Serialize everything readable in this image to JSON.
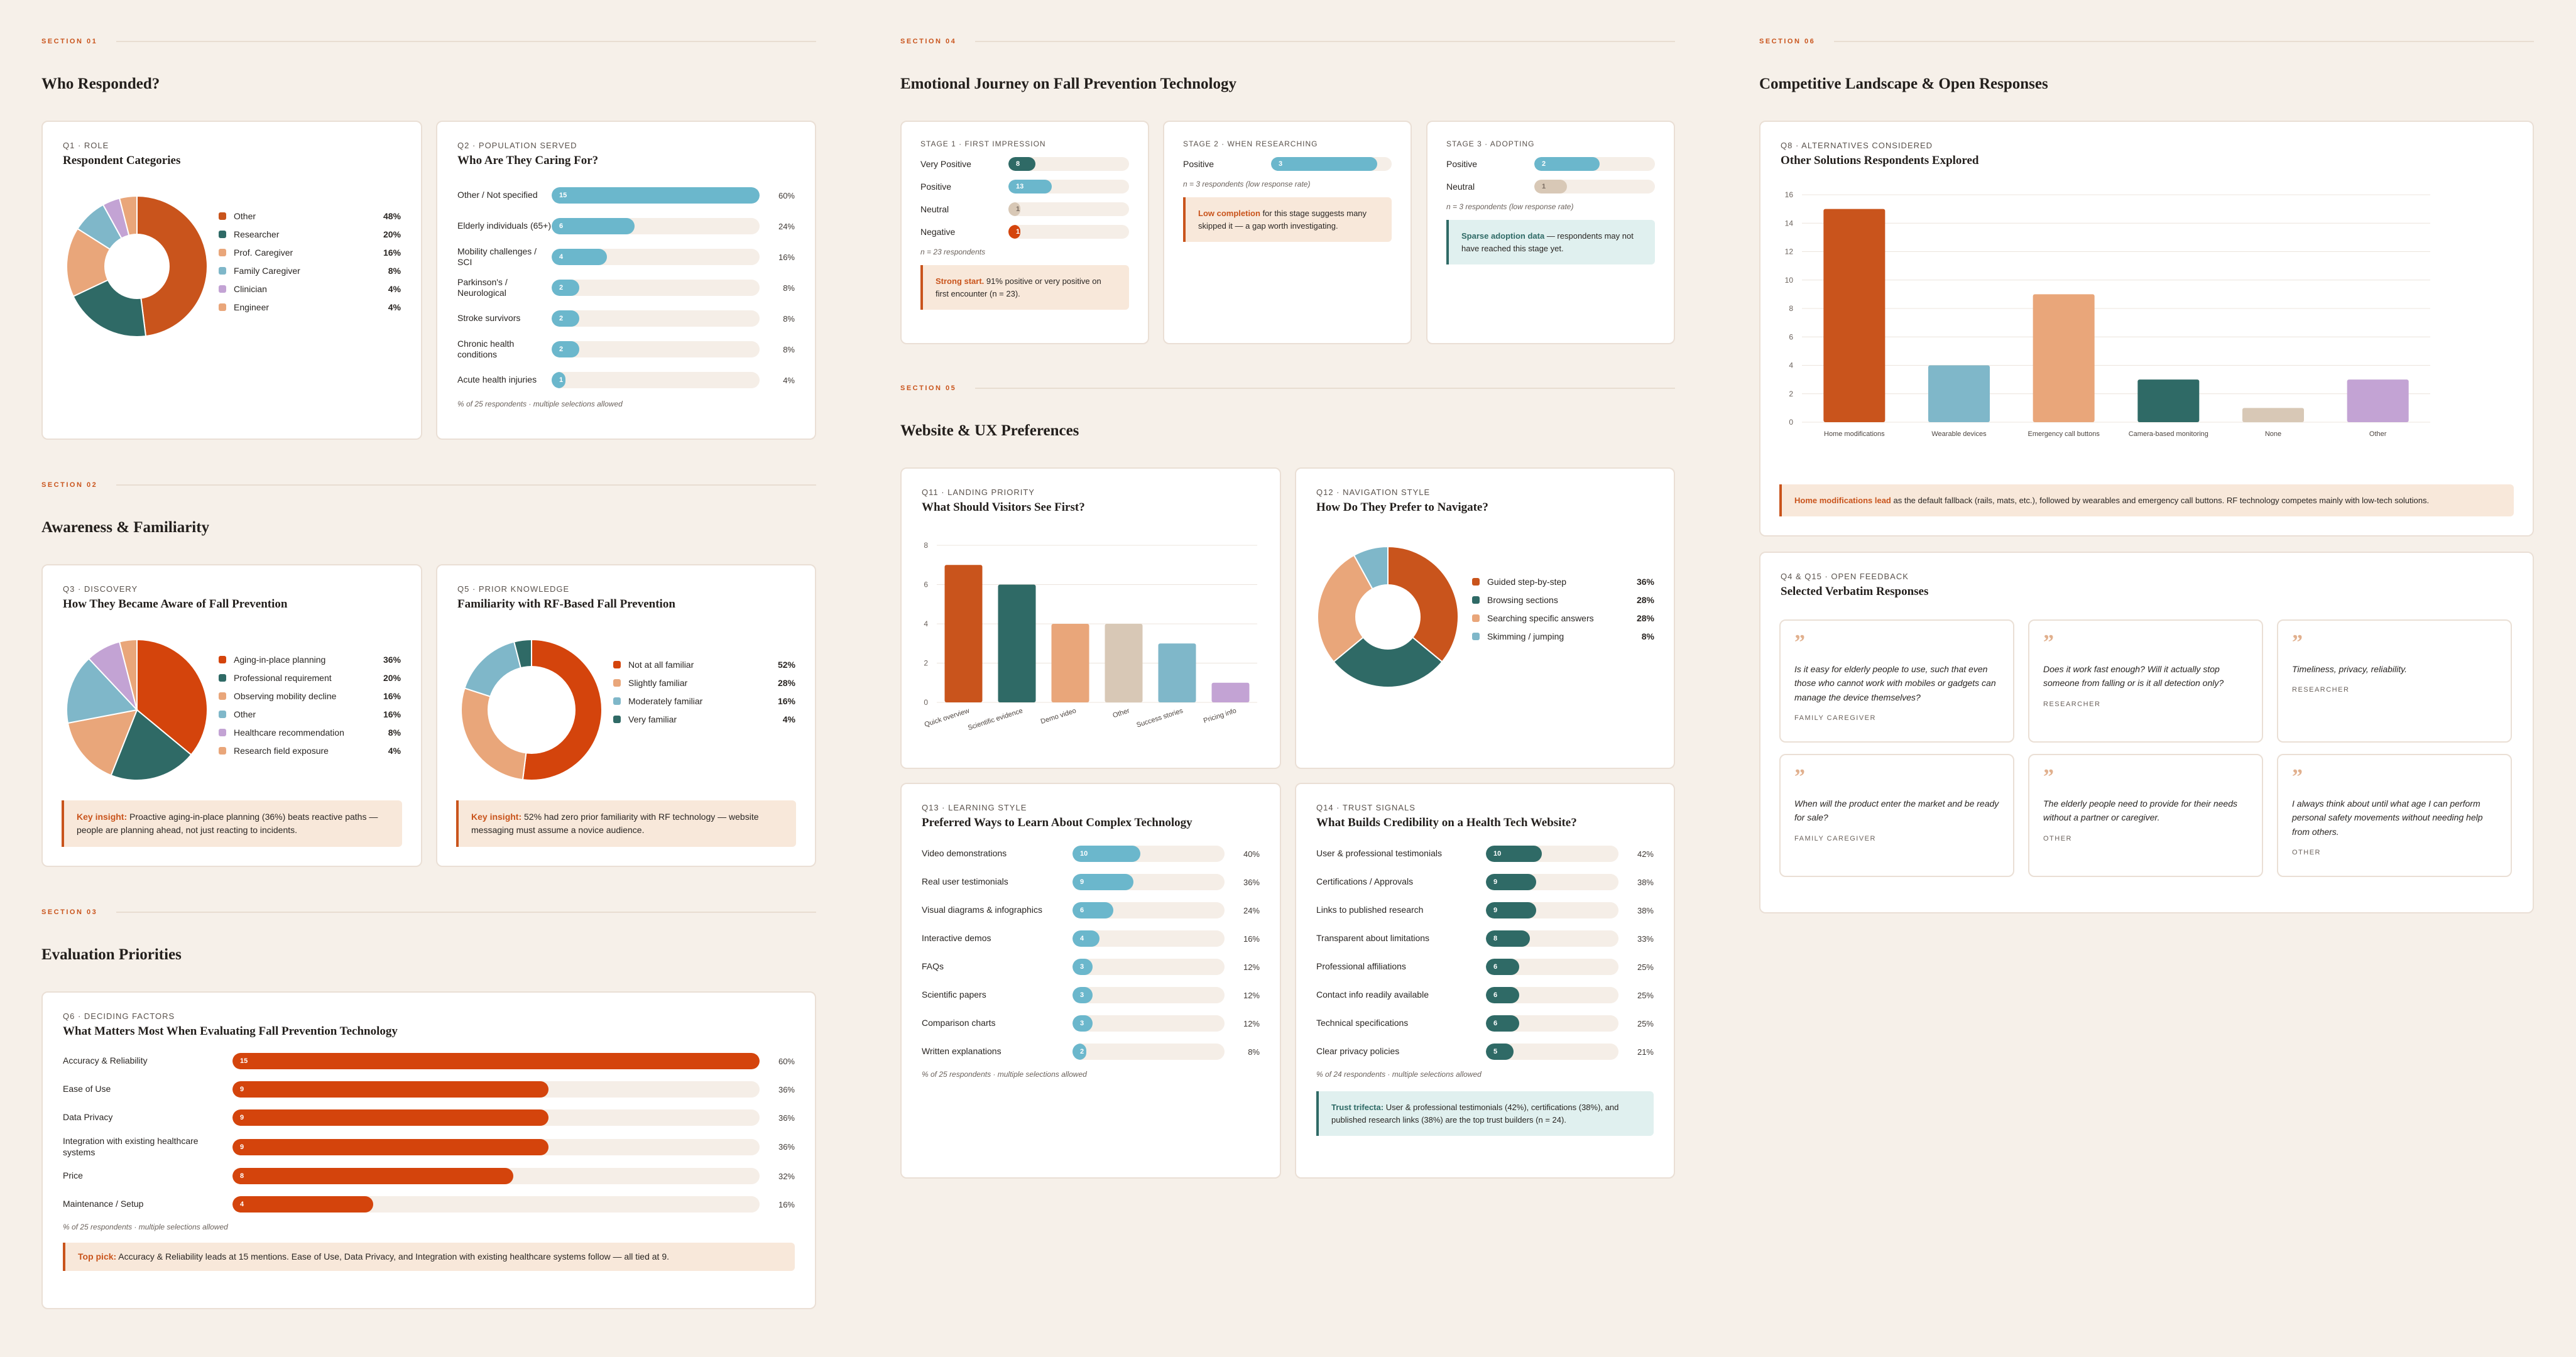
{
  "colors": {
    "orange": "#c9541c",
    "teal": "#2f6a66",
    "peach": "#e9a67a",
    "lightblue": "#7fb7c9",
    "lilac": "#c3a3d4",
    "sand": "#d8c8b6",
    "red": "#d4440c",
    "barblue": "#6bb7cc",
    "barteal": "#2f6a66"
  },
  "s1": {
    "label": "SECTION 01",
    "title": "Who Responded?"
  },
  "s2": {
    "label": "SECTION 02",
    "title": "Awareness & Familiarity"
  },
  "s3": {
    "label": "SECTION 03",
    "title": "Evaluation Priorities"
  },
  "s4": {
    "label": "SECTION 04",
    "title": "Emotional Journey on Fall Prevention Technology"
  },
  "s5": {
    "label": "SECTION 05",
    "title": "Website & UX Preferences"
  },
  "s6": {
    "label": "SECTION 06",
    "title": "Competitive Landscape & Open Responses"
  },
  "q1": {
    "label": "Q1 · ROLE",
    "title": "Respondent Categories",
    "items": [
      {
        "name": "Other",
        "pct": "48%"
      },
      {
        "name": "Researcher",
        "pct": "20%"
      },
      {
        "name": "Prof. Caregiver",
        "pct": "16%"
      },
      {
        "name": "Family Caregiver",
        "pct": "8%"
      },
      {
        "name": "Clinician",
        "pct": "4%"
      },
      {
        "name": "Engineer",
        "pct": "4%"
      }
    ]
  },
  "q2": {
    "label": "Q2 · POPULATION SERVED",
    "title": "Who Are They Caring For?",
    "note": "% of 25 respondents · multiple selections allowed",
    "items": [
      {
        "name": "Other / Not specified",
        "n": "15",
        "pct": "60%"
      },
      {
        "name": "Elderly individuals (65+)",
        "n": "6",
        "pct": "24%"
      },
      {
        "name": "Mobility challenges / SCI",
        "n": "4",
        "pct": "16%"
      },
      {
        "name": "Parkinson's / Neurological",
        "n": "2",
        "pct": "8%"
      },
      {
        "name": "Stroke survivors",
        "n": "2",
        "pct": "8%"
      },
      {
        "name": "Chronic health conditions",
        "n": "2",
        "pct": "8%"
      },
      {
        "name": "Acute health injuries",
        "n": "1",
        "pct": "4%"
      }
    ]
  },
  "q3": {
    "label": "Q3 · DISCOVERY",
    "title": "How They Became Aware of Fall Prevention",
    "items": [
      {
        "name": "Aging-in-place planning",
        "pct": "36%"
      },
      {
        "name": "Professional requirement",
        "pct": "20%"
      },
      {
        "name": "Observing mobility decline",
        "pct": "16%"
      },
      {
        "name": "Other",
        "pct": "16%"
      },
      {
        "name": "Healthcare recommendation",
        "pct": "8%"
      },
      {
        "name": "Research field exposure",
        "pct": "4%"
      }
    ],
    "insight_key": "Key insight:",
    "insight": " Proactive aging-in-place planning (36%) beats reactive paths — people are planning ahead, not just reacting to incidents."
  },
  "q5": {
    "label": "Q5 · PRIOR KNOWLEDGE",
    "title": "Familiarity with RF-Based Fall Prevention",
    "items": [
      {
        "name": "Not at all familiar",
        "pct": "52%"
      },
      {
        "name": "Slightly familiar",
        "pct": "28%"
      },
      {
        "name": "Moderately familiar",
        "pct": "16%"
      },
      {
        "name": "Very familiar",
        "pct": "4%"
      }
    ],
    "insight_key": "Key insight:",
    "insight": " 52% had zero prior familiarity with RF technology — website messaging must assume a novice audience."
  },
  "q6": {
    "label": "Q6 · DECIDING FACTORS",
    "title": "What Matters Most When Evaluating Fall Prevention Technology",
    "note": "% of 25 respondents · multiple selections allowed",
    "items": [
      {
        "name": "Accuracy & Reliability",
        "n": "15",
        "pct": "60%"
      },
      {
        "name": "Ease of Use",
        "n": "9",
        "pct": "36%"
      },
      {
        "name": "Data Privacy",
        "n": "9",
        "pct": "36%"
      },
      {
        "name": "Integration with existing healthcare systems",
        "n": "9",
        "pct": "36%"
      },
      {
        "name": "Price",
        "n": "8",
        "pct": "32%"
      },
      {
        "name": "Maintenance / Setup",
        "n": "4",
        "pct": "16%"
      }
    ],
    "insight_key": "Top pick:",
    "insight": " Accuracy & Reliability leads at 15 mentions. Ease of Use, Data Privacy, and Integration with existing healthcare systems follow — all tied at 9."
  },
  "st1": {
    "label": "STAGE 1 · FIRST IMPRESSION",
    "note": "n = 23 respondents",
    "rows": [
      {
        "name": "Very Positive",
        "n": "8"
      },
      {
        "name": "Positive",
        "n": "13"
      },
      {
        "name": "Neutral",
        "n": "1"
      },
      {
        "name": "Negative",
        "n": "1"
      }
    ],
    "insight_key": "Strong start.",
    "insight": " 91% positive or very positive on first encounter (n = 23)."
  },
  "st2": {
    "label": "STAGE 2 · WHEN RESEARCHING",
    "note": "n = 3 respondents (low response rate)",
    "rows": [
      {
        "name": "Positive",
        "n": "3"
      }
    ],
    "insight_key": "Low completion",
    "insight": " for this stage suggests many skipped it — a gap worth investigating."
  },
  "st3": {
    "label": "STAGE 3 · ADOPTING",
    "note": "n = 3 respondents (low response rate)",
    "rows": [
      {
        "name": "Positive",
        "n": "2"
      },
      {
        "name": "Neutral",
        "n": "1"
      }
    ],
    "insight_key": "Sparse adoption data",
    "insight": " — respondents may not have reached this stage yet."
  },
  "q11": {
    "label": "Q11 · LANDING PRIORITY",
    "title": "What Should Visitors See First?"
  },
  "q12": {
    "label": "Q12 · NAVIGATION STYLE",
    "title": "How Do They Prefer to Navigate?",
    "items": [
      {
        "name": "Guided step-by-step",
        "pct": "36%"
      },
      {
        "name": "Browsing sections",
        "pct": "28%"
      },
      {
        "name": "Searching specific answers",
        "pct": "28%"
      },
      {
        "name": "Skimming / jumping",
        "pct": "8%"
      }
    ]
  },
  "q13": {
    "label": "Q13 · LEARNING STYLE",
    "title": "Preferred Ways to Learn About Complex Technology",
    "note": "% of 25 respondents · multiple selections allowed",
    "items": [
      {
        "name": "Video demonstrations",
        "n": "10",
        "pct": "40%"
      },
      {
        "name": "Real user testimonials",
        "n": "9",
        "pct": "36%"
      },
      {
        "name": "Visual diagrams & infographics",
        "n": "6",
        "pct": "24%"
      },
      {
        "name": "Interactive demos",
        "n": "4",
        "pct": "16%"
      },
      {
        "name": "FAQs",
        "n": "3",
        "pct": "12%"
      },
      {
        "name": "Scientific papers",
        "n": "3",
        "pct": "12%"
      },
      {
        "name": "Comparison charts",
        "n": "3",
        "pct": "12%"
      },
      {
        "name": "Written explanations",
        "n": "2",
        "pct": "8%"
      }
    ]
  },
  "q14": {
    "label": "Q14 · TRUST SIGNALS",
    "title": "What Builds Credibility on a Health Tech Website?",
    "note": "% of 24 respondents · multiple selections allowed",
    "items": [
      {
        "name": "User & professional testimonials",
        "n": "10",
        "pct": "42%"
      },
      {
        "name": "Certifications / Approvals",
        "n": "9",
        "pct": "38%"
      },
      {
        "name": "Links to published research",
        "n": "9",
        "pct": "38%"
      },
      {
        "name": "Transparent about limitations",
        "n": "8",
        "pct": "33%"
      },
      {
        "name": "Professional affiliations",
        "n": "6",
        "pct": "25%"
      },
      {
        "name": "Contact info readily available",
        "n": "6",
        "pct": "25%"
      },
      {
        "name": "Technical specifications",
        "n": "6",
        "pct": "25%"
      },
      {
        "name": "Clear privacy policies",
        "n": "5",
        "pct": "21%"
      }
    ],
    "insight_key": "Trust trifecta:",
    "insight": " User & professional testimonials (42%), certifications (38%), and published research links (38%) are the top trust builders (n = 24)."
  },
  "q8": {
    "label": "Q8 · ALTERNATIVES CONSIDERED",
    "title": "Other Solutions Respondents Explored",
    "insight_key": "Home modifications lead",
    "insight": " as the default fallback (rails, mats, etc.), followed by wearables and emergency call buttons. RF technology competes mainly with low-tech solutions."
  },
  "q4": {
    "label": "Q4 & Q15 · OPEN FEEDBACK",
    "title": "Selected Verbatim Responses",
    "quotes": [
      {
        "text": "Is it easy for elderly people to use, such that even those who cannot work with mobiles or gadgets can manage the device themselves?",
        "role": "FAMILY CAREGIVER"
      },
      {
        "text": "Does it work fast enough? Will it actually stop someone from falling or is it all detection only?",
        "role": "RESEARCHER"
      },
      {
        "text": "Timeliness, privacy, reliability.",
        "role": "RESEARCHER"
      },
      {
        "text": "When will the product enter the market and be ready for sale?",
        "role": "FAMILY CAREGIVER"
      },
      {
        "text": "The elderly people need to provide for their needs without a partner or caregiver.",
        "role": "OTHER"
      },
      {
        "text": "I always think about until what age I can perform personal safety movements without needing help from others.",
        "role": "OTHER"
      }
    ]
  },
  "chart_data": [
    {
      "id": "q1",
      "type": "pie",
      "title": "Respondent Categories",
      "categories": [
        "Other",
        "Researcher",
        "Prof. Caregiver",
        "Family Caregiver",
        "Clinician",
        "Engineer"
      ],
      "values": [
        48,
        20,
        16,
        8,
        4,
        4
      ]
    },
    {
      "id": "q3",
      "type": "pie",
      "title": "How They Became Aware of Fall Prevention",
      "categories": [
        "Aging-in-place planning",
        "Professional requirement",
        "Observing mobility decline",
        "Other",
        "Healthcare recommendation",
        "Research field exposure"
      ],
      "values": [
        36,
        20,
        16,
        16,
        8,
        4
      ]
    },
    {
      "id": "q5",
      "type": "pie",
      "title": "Familiarity with RF-Based Fall Prevention",
      "categories": [
        "Not at all familiar",
        "Slightly familiar",
        "Moderately familiar",
        "Very familiar"
      ],
      "values": [
        52,
        28,
        16,
        4
      ]
    },
    {
      "id": "q12",
      "type": "pie",
      "title": "How Do They Prefer to Navigate?",
      "categories": [
        "Guided step-by-step",
        "Browsing sections",
        "Searching specific answers",
        "Skimming / jumping"
      ],
      "values": [
        36,
        28,
        28,
        8
      ]
    },
    {
      "id": "q11",
      "type": "bar",
      "title": "What Should Visitors See First?",
      "categories": [
        "Quick overview",
        "Scientific evidence",
        "Demo video",
        "Other",
        "Success stories",
        "Pricing info"
      ],
      "values": [
        7,
        6,
        4,
        4,
        3,
        1
      ],
      "ylim": [
        0,
        8
      ],
      "yticks": [
        "0",
        "2",
        "4",
        "6",
        "8"
      ]
    },
    {
      "id": "q8",
      "type": "bar",
      "title": "Other Solutions Respondents Explored",
      "categories": [
        "Home modifications",
        "Wearable devices",
        "Emergency call buttons",
        "Camera-based monitoring",
        "None",
        "Other"
      ],
      "values": [
        15,
        4,
        9,
        3,
        1,
        3
      ],
      "ylim": [
        0,
        16
      ],
      "yticks": [
        "0",
        "2",
        "4",
        "6",
        "8",
        "10",
        "12",
        "14",
        "16"
      ]
    }
  ]
}
